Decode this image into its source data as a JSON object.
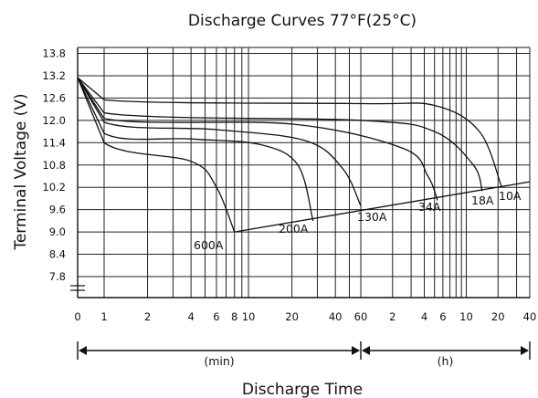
{
  "chart_data": {
    "type": "line",
    "title": "Discharge Curves 77°F(25°C)",
    "ylabel": "Terminal Voltage (V)",
    "xlabel": "Discharge Time",
    "ylim": [
      7.8,
      13.8
    ],
    "y_scale_note": "y-axis break below 7.8",
    "y_ticks": [
      "13.8",
      "13.2",
      "12.6",
      "12.0",
      "11.4",
      "10.8",
      "10.2",
      "9.6",
      "9.0",
      "8.4",
      "7.8"
    ],
    "x_scale": "log (minutes, then hours)",
    "x_ticks": [
      {
        "label": "0",
        "minutes": 0
      },
      {
        "label": "1",
        "minutes": 1
      },
      {
        "label": "2",
        "minutes": 2
      },
      {
        "label": "4",
        "minutes": 4
      },
      {
        "label": "6",
        "minutes": 6
      },
      {
        "label": "8",
        "minutes": 8
      },
      {
        "label": "10",
        "minutes": 10
      },
      {
        "label": "20",
        "minutes": 20
      },
      {
        "label": "40",
        "minutes": 40
      },
      {
        "label": "60",
        "minutes": 60
      },
      {
        "label": "2",
        "minutes": 120
      },
      {
        "label": "4",
        "minutes": 240
      },
      {
        "label": "6",
        "minutes": 360
      },
      {
        "label": "10",
        "minutes": 600
      },
      {
        "label": "20",
        "minutes": 1200
      },
      {
        "label": "40",
        "minutes": 2400
      }
    ],
    "segments": [
      {
        "label": "(min)",
        "from_minutes": 0,
        "to_minutes": 60
      },
      {
        "label": "(h)",
        "from_minutes": 60,
        "to_minutes": 2400
      }
    ],
    "grid": true,
    "series": [
      {
        "name": "600A",
        "points": [
          [
            0,
            13.15
          ],
          [
            1,
            11.4
          ],
          [
            4,
            10.9
          ],
          [
            6,
            10.2
          ],
          [
            8,
            9.0
          ]
        ]
      },
      {
        "name": "200A",
        "points": [
          [
            0,
            13.15
          ],
          [
            1,
            11.65
          ],
          [
            4,
            11.5
          ],
          [
            12,
            11.35
          ],
          [
            22,
            10.8
          ],
          [
            28,
            9.3
          ]
        ]
      },
      {
        "name": "130A",
        "points": [
          [
            0,
            13.15
          ],
          [
            1,
            11.95
          ],
          [
            6,
            11.75
          ],
          [
            25,
            11.45
          ],
          [
            45,
            10.7
          ],
          [
            60,
            9.7
          ]
        ]
      },
      {
        "name": "34A",
        "points": [
          [
            0,
            13.15
          ],
          [
            1,
            12.05
          ],
          [
            20,
            11.9
          ],
          [
            150,
            11.25
          ],
          [
            260,
            10.5
          ],
          [
            320,
            9.85
          ]
        ]
      },
      {
        "name": "18A",
        "points": [
          [
            0,
            13.15
          ],
          [
            1,
            12.2
          ],
          [
            60,
            12.0
          ],
          [
            300,
            11.7
          ],
          [
            700,
            10.8
          ],
          [
            850,
            10.1
          ]
        ]
      },
      {
        "name": "10A",
        "points": [
          [
            0,
            13.15
          ],
          [
            1,
            12.55
          ],
          [
            60,
            12.45
          ],
          [
            300,
            12.4
          ],
          [
            800,
            11.7
          ],
          [
            1300,
            10.2
          ]
        ]
      }
    ],
    "cutoff_line": {
      "points": [
        [
          8,
          9.0
        ],
        [
          2400,
          10.35
        ]
      ]
    }
  }
}
